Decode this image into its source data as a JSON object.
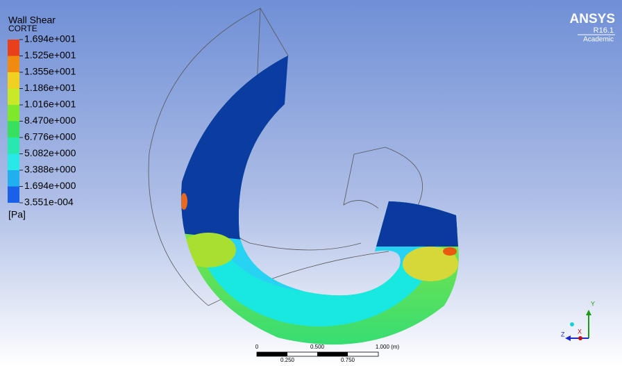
{
  "legend": {
    "title": "Wall Shear",
    "subtitle": "CORTE",
    "labels": [
      "1.694e+001",
      "1.525e+001",
      "1.355e+001",
      "1.186e+001",
      "1.016e+001",
      "8.470e+000",
      "6.776e+000",
      "5.082e+000",
      "3.388e+000",
      "1.694e+000",
      "3.551e-004"
    ],
    "unit": "[Pa]"
  },
  "logo": {
    "name": "ANSYS",
    "version": "R16.1",
    "edition": "Academic"
  },
  "scale_bar": {
    "top_labels": [
      "0",
      "0.500",
      "1.000 (m)"
    ],
    "bottom_labels": [
      "0.250",
      "0.750"
    ]
  },
  "triad": {
    "y": "Y",
    "z": "Z",
    "x": "X"
  }
}
